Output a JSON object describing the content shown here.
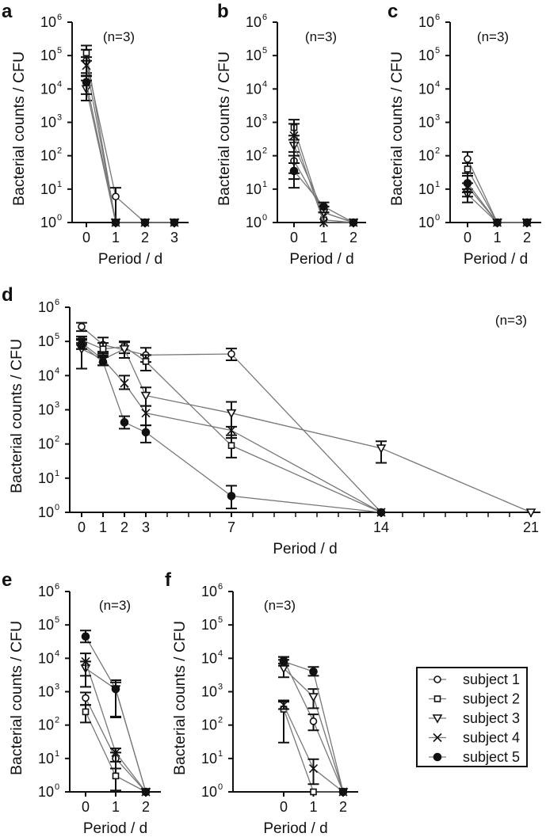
{
  "legend": {
    "entries": [
      "subject 1",
      "subject 2",
      "subject 3",
      "subject 4",
      "subject 5"
    ],
    "markers": [
      "open-circle",
      "open-square",
      "open-triangle-down",
      "cross",
      "filled-circle"
    ]
  },
  "colors": {
    "line": "#777777",
    "marker": "#111111",
    "axis": "#111111"
  },
  "chart_data": [
    {
      "panel": "a",
      "type": "line",
      "annotation": "(n=3)",
      "yscale": "log",
      "xlabel": "Period / d",
      "ylabel": "Bacterial counts / CFU",
      "xticks": [
        0,
        1,
        2,
        3
      ],
      "xtick_labels": [
        "0",
        "1",
        "2",
        "3"
      ],
      "xminor": [],
      "yticks_exp": [
        0,
        1,
        2,
        3,
        4,
        5,
        6
      ],
      "ylim": [
        1,
        1000000
      ],
      "series": [
        {
          "name": "subject 1",
          "x": [
            0,
            1,
            2,
            3
          ],
          "values": [
            70000,
            6,
            1,
            1
          ],
          "err_hi": [
            150000,
            11,
            1,
            1
          ],
          "err_lo": [
            30000,
            1,
            1,
            1
          ]
        },
        {
          "name": "subject 2",
          "x": [
            0,
            1,
            2,
            3
          ],
          "values": [
            120000,
            1,
            1,
            1
          ],
          "err_hi": [
            200000,
            1,
            1,
            1
          ],
          "err_lo": [
            70000,
            1,
            1,
            1
          ]
        },
        {
          "name": "subject 3",
          "x": [
            0,
            1,
            2,
            3
          ],
          "values": [
            10000,
            1,
            1,
            1
          ],
          "err_hi": [
            18000,
            1,
            1,
            1
          ],
          "err_lo": [
            4500,
            1,
            1,
            1
          ]
        },
        {
          "name": "subject 4",
          "x": [
            0,
            1,
            2,
            3
          ],
          "values": [
            50000,
            1,
            1,
            1
          ],
          "err_hi": [
            90000,
            1,
            1,
            1
          ],
          "err_lo": [
            25000,
            1,
            1,
            1
          ]
        },
        {
          "name": "subject 5",
          "x": [
            0,
            1,
            2,
            3
          ],
          "values": [
            16000,
            1,
            1,
            1
          ],
          "err_hi": [
            24000,
            1,
            1,
            1
          ],
          "err_lo": [
            7000,
            1,
            1,
            1
          ]
        }
      ]
    },
    {
      "panel": "b",
      "type": "line",
      "annotation": "(n=3)",
      "yscale": "log",
      "xlabel": "Period / d",
      "ylabel": "Bacterial counts / CFU",
      "xticks": [
        0,
        1,
        2
      ],
      "xtick_labels": [
        "0",
        "1",
        "2"
      ],
      "xminor": [],
      "yticks_exp": [
        0,
        1,
        2,
        3,
        4,
        5,
        6
      ],
      "ylim": [
        1,
        1000000
      ],
      "series": [
        {
          "name": "subject 1",
          "x": [
            0,
            1,
            2
          ],
          "values": [
            70,
            2,
            1
          ],
          "err_hi": [
            130,
            3,
            1
          ],
          "err_lo": [
            30,
            1,
            1
          ]
        },
        {
          "name": "subject 2",
          "x": [
            0,
            1,
            2
          ],
          "values": [
            700,
            1.2,
            1
          ],
          "err_hi": [
            1200,
            2,
            1
          ],
          "err_lo": [
            300,
            1,
            1
          ]
        },
        {
          "name": "subject 3",
          "x": [
            0,
            1,
            2
          ],
          "values": [
            200,
            2,
            1
          ],
          "err_hi": [
            400,
            3,
            1
          ],
          "err_lo": [
            100,
            1,
            1
          ]
        },
        {
          "name": "subject 4",
          "x": [
            0,
            1,
            2
          ],
          "values": [
            400,
            1,
            1
          ],
          "err_hi": [
            900,
            1,
            1
          ],
          "err_lo": [
            20,
            1,
            1
          ]
        },
        {
          "name": "subject 5",
          "x": [
            0,
            1,
            2
          ],
          "values": [
            35,
            3,
            1
          ],
          "err_hi": [
            60,
            4,
            1
          ],
          "err_lo": [
            11,
            2,
            1
          ]
        }
      ]
    },
    {
      "panel": "c",
      "type": "line",
      "annotation": "(n=3)",
      "yscale": "log",
      "xlabel": "Period / d",
      "ylabel": "Bacterial counts / CFU",
      "xticks": [
        0,
        1,
        2
      ],
      "xtick_labels": [
        "0",
        "1",
        "2"
      ],
      "xminor": [],
      "yticks_exp": [
        0,
        1,
        2,
        3,
        4,
        5,
        6
      ],
      "ylim": [
        1,
        1000000
      ],
      "series": [
        {
          "name": "subject 1",
          "x": [
            0,
            1,
            2
          ],
          "values": [
            80,
            1,
            1
          ],
          "err_hi": [
            130,
            1,
            1
          ],
          "err_lo": [
            30,
            1,
            1
          ]
        },
        {
          "name": "subject 2",
          "x": [
            0,
            1,
            2
          ],
          "values": [
            40,
            1,
            1
          ],
          "err_hi": [
            60,
            1,
            1
          ],
          "err_lo": [
            15,
            1,
            1
          ]
        },
        {
          "name": "subject 3",
          "x": [
            0,
            1,
            2
          ],
          "values": [
            7,
            1,
            1
          ],
          "err_hi": [
            10,
            1,
            1
          ],
          "err_lo": [
            4,
            1,
            1
          ]
        },
        {
          "name": "subject 4",
          "x": [
            0,
            1,
            2
          ],
          "values": [
            12,
            1,
            1
          ],
          "err_hi": [
            25,
            1,
            1
          ],
          "err_lo": [
            6,
            1,
            1
          ]
        },
        {
          "name": "subject 5",
          "x": [
            0,
            1,
            2
          ],
          "values": [
            15,
            1,
            1
          ],
          "err_hi": [
            25,
            1,
            1
          ],
          "err_lo": [
            8,
            1,
            1
          ]
        }
      ]
    },
    {
      "panel": "d",
      "type": "line",
      "annotation": "(n=3)",
      "yscale": "log",
      "xlabel": "Period / d",
      "ylabel": "Bacterial counts / CFU",
      "xticks": [
        0,
        1,
        2,
        3,
        7,
        14,
        21
      ],
      "xtick_labels": [
        "0",
        "1",
        "2",
        "3",
        "7",
        "14",
        "21"
      ],
      "xminor": [
        4,
        5,
        6,
        8,
        9,
        10,
        11,
        12,
        13,
        15,
        16,
        17,
        18,
        19,
        20
      ],
      "yticks_exp": [
        0,
        1,
        2,
        3,
        4,
        5,
        6
      ],
      "ylim": [
        1,
        1000000
      ],
      "series": [
        {
          "name": "subject 1",
          "x": [
            0,
            1,
            3,
            7,
            14
          ],
          "values": [
            270000,
            80000,
            40000,
            43000,
            1
          ],
          "err_hi": [
            350000,
            130000,
            65000,
            62000,
            1
          ],
          "err_lo": [
            200000,
            50000,
            25000,
            28000,
            1
          ]
        },
        {
          "name": "subject 2",
          "x": [
            0,
            1,
            2,
            3,
            7,
            14
          ],
          "values": [
            110000,
            60000,
            70000,
            26000,
            90,
            1
          ],
          "err_hi": [
            140000,
            90000,
            100000,
            40000,
            150,
            1
          ],
          "err_lo": [
            80000,
            35000,
            45000,
            14000,
            40,
            1
          ]
        },
        {
          "name": "subject 3",
          "x": [
            0,
            1,
            2,
            3,
            7,
            14,
            21
          ],
          "values": [
            60000,
            30000,
            60000,
            2600,
            800,
            75,
            1
          ],
          "err_hi": [
            90000,
            45000,
            95000,
            4500,
            1700,
            120,
            1
          ],
          "err_lo": [
            16000,
            20000,
            33000,
            1300,
            150,
            28,
            1
          ]
        },
        {
          "name": "subject 4",
          "x": [
            0,
            1,
            2,
            3,
            7,
            14
          ],
          "values": [
            90000,
            30000,
            6000,
            800,
            250,
            1
          ],
          "err_hi": [
            120000,
            40000,
            10000,
            1300,
            320,
            1
          ],
          "err_lo": [
            60000,
            20000,
            4000,
            350,
            180,
            1
          ]
        },
        {
          "name": "subject 5",
          "x": [
            0,
            1,
            2,
            3,
            7,
            14
          ],
          "values": [
            80000,
            25000,
            430,
            220,
            3,
            1
          ],
          "err_hi": [
            110000,
            35000,
            650,
            350,
            6,
            1
          ],
          "err_lo": [
            60000,
            20000,
            280,
            110,
            1.3,
            1
          ]
        }
      ]
    },
    {
      "panel": "e",
      "type": "line",
      "annotation": "(n=3)",
      "yscale": "log",
      "xlabel": "Period / d",
      "ylabel": "Bacterial counts / CFU",
      "xticks": [
        0,
        1,
        2
      ],
      "xtick_labels": [
        "0",
        "1",
        "2"
      ],
      "xminor": [],
      "yticks_exp": [
        0,
        1,
        2,
        3,
        4,
        5,
        6
      ],
      "ylim": [
        1,
        1000000
      ],
      "series": [
        {
          "name": "subject 1",
          "x": [
            0,
            1,
            2
          ],
          "values": [
            650,
            10,
            1
          ],
          "err_hi": [
            950,
            15,
            1
          ],
          "err_lo": [
            400,
            5,
            1
          ]
        },
        {
          "name": "subject 2",
          "x": [
            0,
            1,
            2
          ],
          "values": [
            250,
            3,
            1
          ],
          "err_hi": [
            400,
            5,
            1
          ],
          "err_lo": [
            120,
            1.1,
            1
          ]
        },
        {
          "name": "subject 3",
          "x": [
            0,
            1,
            2
          ],
          "values": [
            5000,
            1200,
            1
          ],
          "err_hi": [
            8000,
            2200,
            1
          ],
          "err_lo": [
            1400,
            170,
            1
          ]
        },
        {
          "name": "subject 4",
          "x": [
            0,
            1,
            2
          ],
          "values": [
            8000,
            15,
            1
          ],
          "err_hi": [
            14000,
            20,
            1
          ],
          "err_lo": [
            3000,
            8,
            1
          ]
        },
        {
          "name": "subject 5",
          "x": [
            0,
            1,
            2
          ],
          "values": [
            45000,
            1200,
            1
          ],
          "err_hi": [
            68000,
            1900,
            1
          ],
          "err_lo": [
            30000,
            180,
            1
          ]
        }
      ]
    },
    {
      "panel": "f",
      "type": "line",
      "annotation": "(n=3)",
      "yscale": "log",
      "xlabel": "Period / d",
      "ylabel": "Bacterial counts / CFU",
      "xticks": [
        0,
        1,
        2
      ],
      "xtick_labels": [
        "0",
        "1",
        "2"
      ],
      "xminor": [],
      "yticks_exp": [
        0,
        1,
        2,
        3,
        4,
        5,
        6
      ],
      "ylim": [
        1,
        1000000
      ],
      "series": [
        {
          "name": "subject 1",
          "x": [
            0,
            1,
            2
          ],
          "values": [
            9000,
            130,
            1
          ],
          "err_hi": [
            11000,
            210,
            1
          ],
          "err_lo": [
            7000,
            70,
            1
          ]
        },
        {
          "name": "subject 2",
          "x": [
            0,
            1,
            2
          ],
          "values": [
            300,
            1,
            1
          ],
          "err_hi": [
            500,
            1,
            1
          ],
          "err_lo": [
            30,
            1,
            1
          ]
        },
        {
          "name": "subject 3",
          "x": [
            0,
            1,
            2
          ],
          "values": [
            5000,
            700,
            1
          ],
          "err_hi": [
            9000,
            1200,
            1
          ],
          "err_lo": [
            2700,
            320,
            1
          ]
        },
        {
          "name": "subject 4",
          "x": [
            0,
            1,
            2
          ],
          "values": [
            400,
            5,
            1
          ],
          "err_hi": [
            550,
            9.5,
            1
          ],
          "err_lo": [
            300,
            1.7,
            1
          ]
        },
        {
          "name": "subject 5",
          "x": [
            0,
            1,
            2
          ],
          "values": [
            8000,
            4000,
            1
          ],
          "err_hi": [
            11000,
            5500,
            1
          ],
          "err_lo": [
            6000,
            3000,
            1
          ]
        }
      ]
    }
  ]
}
